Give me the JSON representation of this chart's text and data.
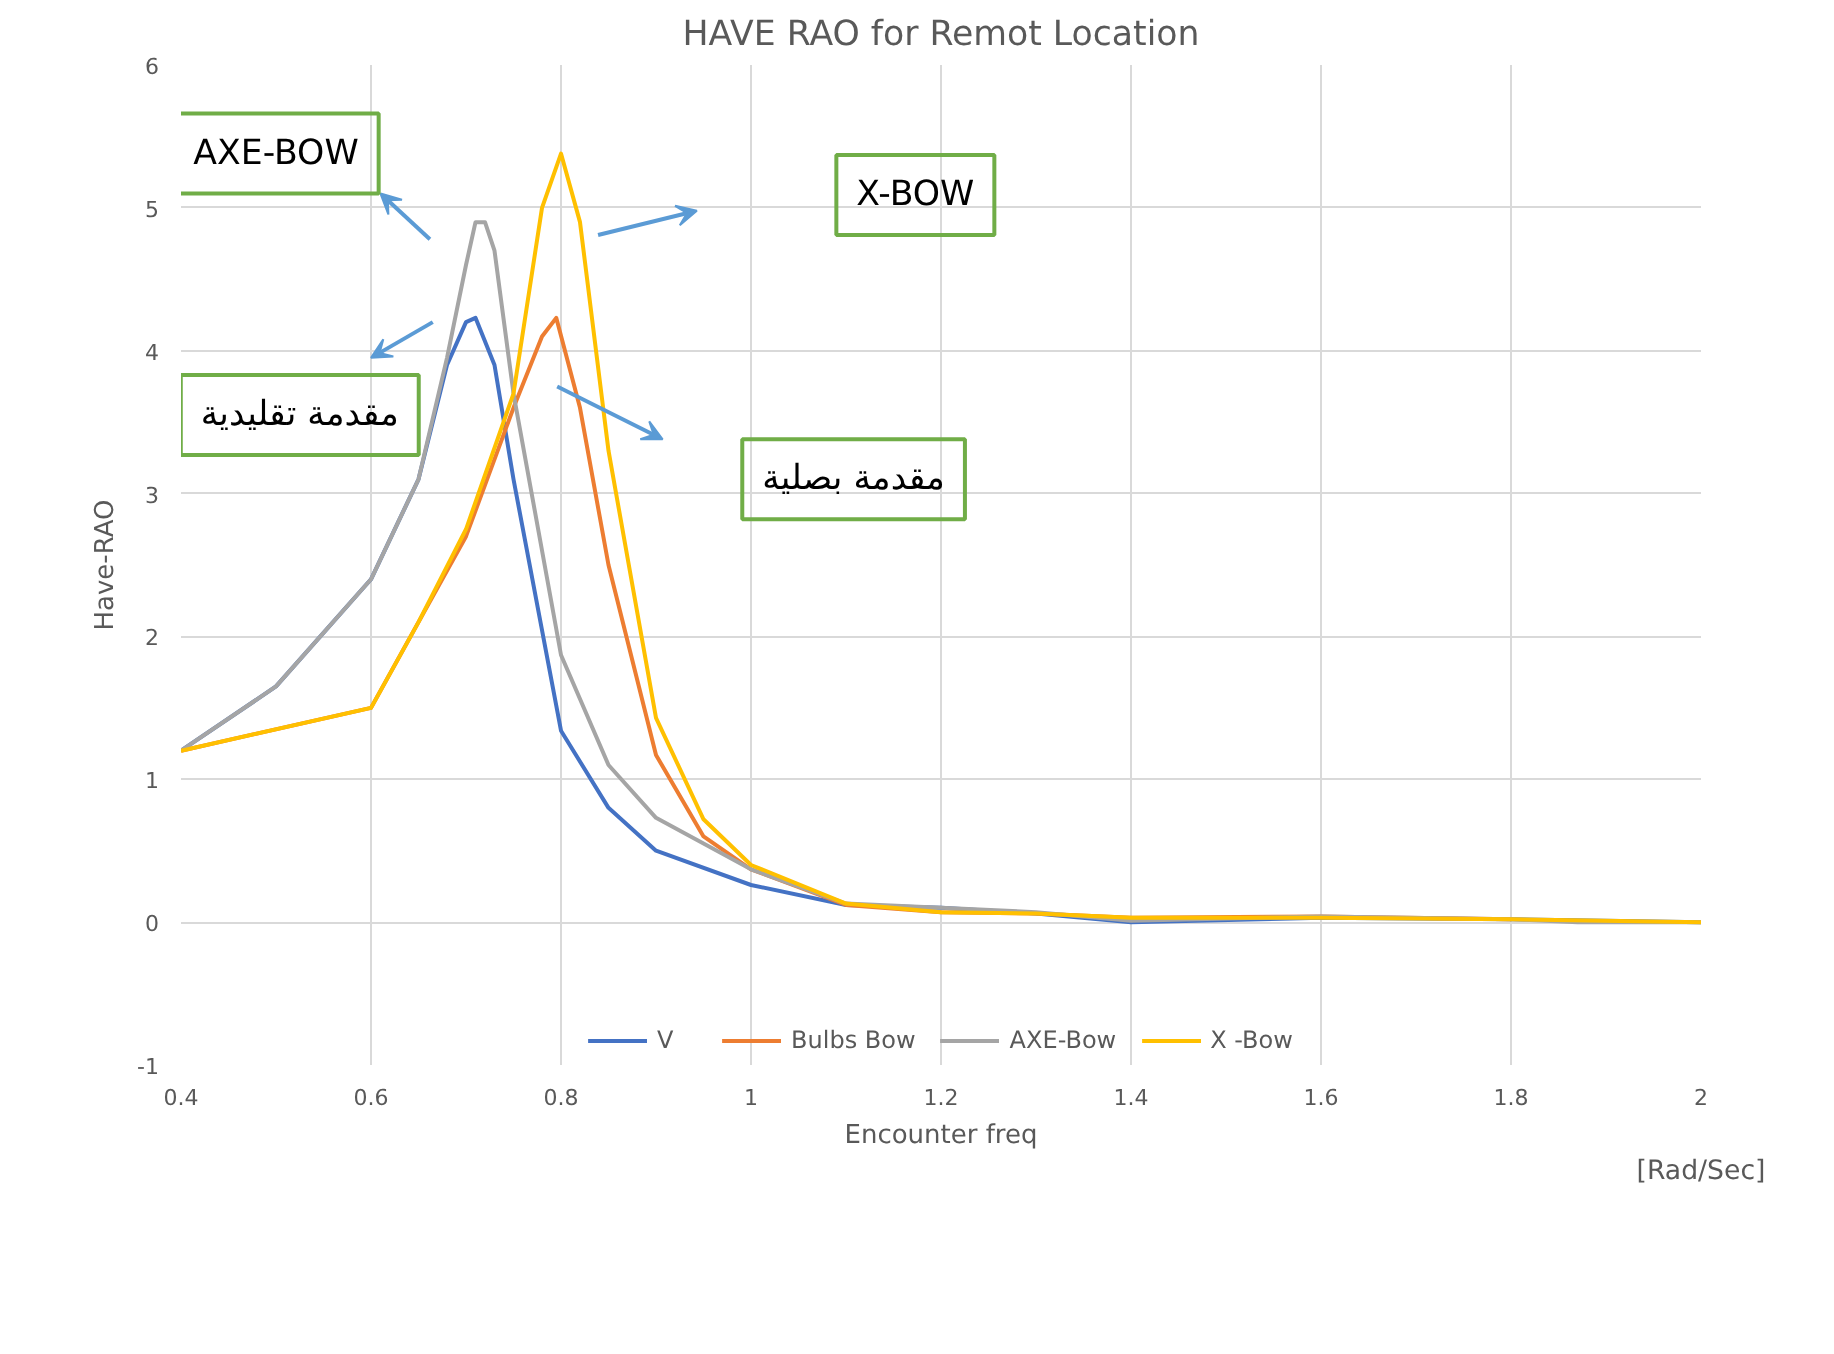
{
  "chart_data": {
    "type": "line",
    "title": "HAVE RAO for Remot Location",
    "xlabel": "Encounter freq",
    "ylabel": "Have-RAO",
    "xlim": [
      0.4,
      2
    ],
    "xticks": [
      0.4,
      0.6,
      0.8,
      1,
      1.2,
      1.4,
      1.6,
      1.8,
      2
    ],
    "ylim": [
      -1,
      6
    ],
    "yticks": [
      -1,
      0,
      1,
      2,
      3,
      4,
      5,
      6
    ],
    "grid": true,
    "legend": "bottom",
    "marker": "none",
    "line_style": "solid",
    "annotations": [
      "AXE-BOW",
      "X-BOW",
      "مقدمة تقليدية",
      "مقدمة بصلية",
      "[Rad/Sec]"
    ],
    "series": [
      {
        "name": "V",
        "color": "#4472c4",
        "x": [
          0.4,
          0.5,
          0.6,
          0.65,
          0.68,
          0.7,
          0.71,
          0.73,
          0.75,
          0.8,
          0.85,
          0.9,
          1.0,
          1.1,
          1.2,
          1.3,
          1.4,
          1.6,
          1.8,
          2
        ],
        "values": [
          1.2,
          1.65,
          2.4,
          3.1,
          3.9,
          4.2,
          4.23,
          3.9,
          3.1,
          1.34,
          0.8,
          0.5,
          0.26,
          0.12,
          0.1,
          0.06,
          0.0,
          0.03,
          0.02,
          0.0
        ]
      },
      {
        "name": "Bulbs Bow",
        "color": "#ed7d31",
        "x": [
          0.4,
          0.6,
          0.65,
          0.7,
          0.75,
          0.78,
          0.795,
          0.82,
          0.85,
          0.9,
          0.95,
          1.0,
          1.1,
          1.2,
          1.3,
          1.4,
          1.6,
          1.8
        ],
        "values": [
          1.2,
          1.5,
          2.1,
          2.7,
          3.6,
          4.1,
          4.23,
          3.6,
          2.5,
          1.17,
          0.6,
          0.37,
          0.12,
          0.07,
          0.06,
          0.03,
          0.04,
          0.02
        ]
      },
      {
        "name": "AXE-Bow",
        "color": "#a5a5a5",
        "x": [
          0.4,
          0.5,
          0.6,
          0.65,
          0.68,
          0.7,
          0.71,
          0.72,
          0.73,
          0.75,
          0.8,
          0.85,
          0.9,
          1.0,
          1.1,
          1.2,
          1.3,
          1.4,
          1.6,
          1.8,
          1.87,
          2
        ],
        "values": [
          1.2,
          1.65,
          2.4,
          3.1,
          3.95,
          4.6,
          4.9,
          4.9,
          4.7,
          3.7,
          1.87,
          1.1,
          0.73,
          0.37,
          0.13,
          0.1,
          0.07,
          0.01,
          0.04,
          0.02,
          0.0,
          0.0
        ]
      },
      {
        "name": "X -Bow",
        "color": "#ffc000",
        "x": [
          0.4,
          0.6,
          0.65,
          0.7,
          0.75,
          0.78,
          0.8,
          0.82,
          0.85,
          0.9,
          0.95,
          1.0,
          1.1,
          1.2,
          1.3,
          1.4,
          1.6,
          1.8,
          2
        ],
        "values": [
          1.2,
          1.5,
          2.1,
          2.75,
          3.7,
          5.0,
          5.38,
          4.9,
          3.3,
          1.43,
          0.72,
          0.4,
          0.13,
          0.07,
          0.06,
          0.03,
          0.03,
          0.02,
          0.0
        ]
      }
    ]
  }
}
